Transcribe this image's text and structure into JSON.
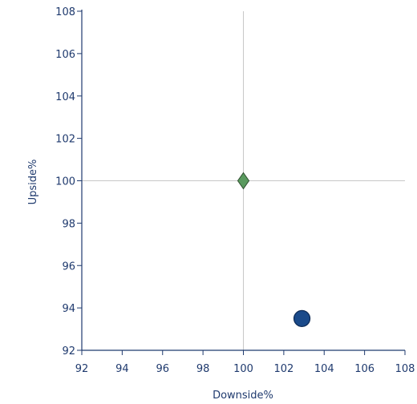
{
  "chart_data": {
    "type": "scatter",
    "title": "",
    "xlabel": "Downside%",
    "ylabel": "Upside%",
    "xlim": [
      92,
      108
    ],
    "ylim": [
      92,
      108
    ],
    "x_ticks": [
      92,
      94,
      96,
      98,
      100,
      102,
      104,
      106,
      108
    ],
    "y_ticks": [
      92,
      94,
      96,
      98,
      100,
      102,
      104,
      106,
      108
    ],
    "reference_lines": {
      "x": 100,
      "y": 100
    },
    "grid": false,
    "points": [
      {
        "x": 100,
        "y": 100,
        "marker": "diamond",
        "color": "#5a9a5f"
      },
      {
        "x": 102.9,
        "y": 93.5,
        "marker": "circle",
        "color": "#1a4a8a"
      }
    ]
  },
  "colors": {
    "axis": "#1f3a6e",
    "reference_line": "#c8c8c8",
    "text": "#1f3a6e"
  }
}
